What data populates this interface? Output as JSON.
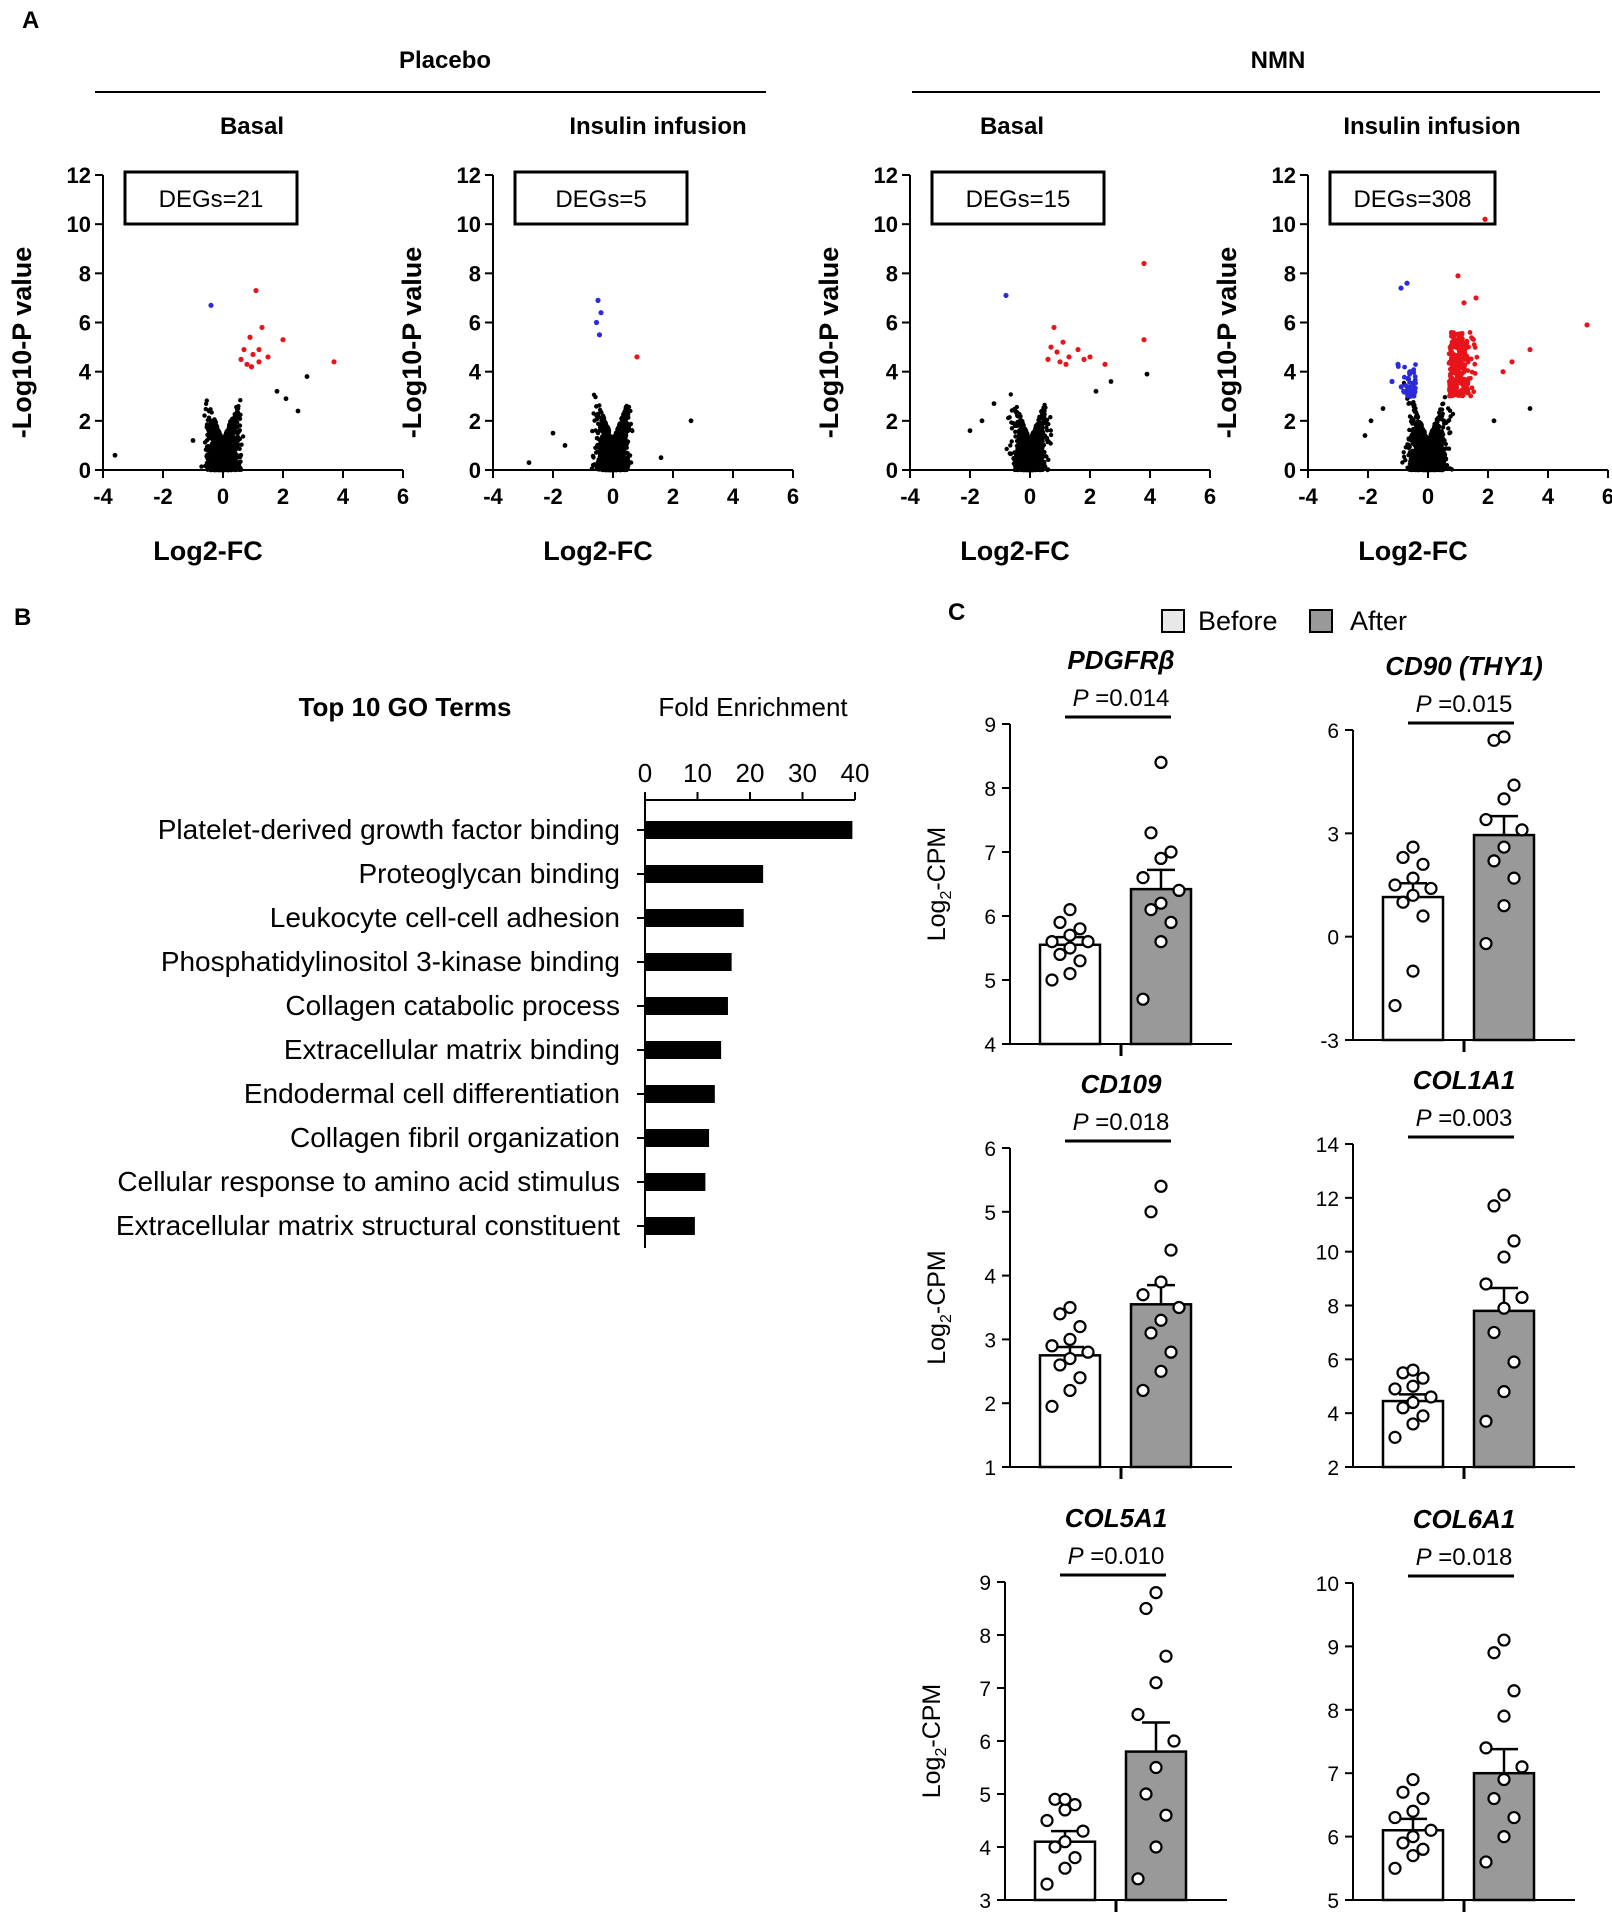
{
  "panels": {
    "A": "A",
    "B": "B",
    "C": "C"
  },
  "panel_a": {
    "groups": [
      {
        "label": "Placebo"
      },
      {
        "label": "NMN"
      }
    ]
  },
  "panel_c": {
    "legend": [
      {
        "label": "Before",
        "color": "#e8e8e8"
      },
      {
        "label": "After",
        "color": "#999999"
      }
    ],
    "ylabel_main": "Log",
    "ylabel_sub": "2",
    "ylabel_rest": "-CPM"
  },
  "colors": {
    "up": "#e8141b",
    "down": "#2b2bd9",
    "ns": "#000000",
    "bar_after": "#999999",
    "bar_before": "#ffffff",
    "go_bar": "#000000"
  },
  "chart_data": [
    {
      "type": "scatter",
      "id": "volcano-placebo-basal",
      "title": "Basal",
      "xlabel": "Log2-FC",
      "ylabel": "-Log10-P value",
      "xlim": [
        -4,
        6
      ],
      "ylim": [
        0,
        12
      ],
      "xticks": [
        "-4",
        "-2",
        "0",
        "2",
        "4",
        "6"
      ],
      "yticks": [
        "0",
        "2",
        "4",
        "6",
        "8",
        "10",
        "12"
      ],
      "annotation": "DEGs=21",
      "red_points": [
        [
          0.6,
          4.5
        ],
        [
          0.8,
          4.3
        ],
        [
          1.0,
          4.7
        ],
        [
          1.2,
          4.4
        ],
        [
          0.9,
          5.4
        ],
        [
          1.3,
          5.8
        ],
        [
          1.5,
          4.6
        ],
        [
          2.0,
          5.3
        ],
        [
          1.1,
          7.3
        ],
        [
          0.7,
          4.9
        ],
        [
          3.7,
          4.4
        ],
        [
          1.2,
          4.9
        ],
        [
          0.95,
          4.2
        ]
      ],
      "blue_points": [
        [
          -0.4,
          6.7
        ]
      ],
      "black_outliers": [
        [
          -3.6,
          0.6
        ],
        [
          2.5,
          2.4
        ],
        [
          2.1,
          2.9
        ],
        [
          -1.0,
          1.2
        ],
        [
          1.8,
          3.2
        ],
        [
          2.8,
          3.8
        ]
      ]
    },
    {
      "type": "scatter",
      "id": "volcano-placebo-insulin",
      "title": "Insulin infusion",
      "xlabel": "Log2-FC",
      "ylabel": "-Log10-P value",
      "xlim": [
        -4,
        6
      ],
      "ylim": [
        0,
        12
      ],
      "xticks": [
        "-4",
        "-2",
        "0",
        "2",
        "4",
        "6"
      ],
      "yticks": [
        "0",
        "2",
        "4",
        "6",
        "8",
        "10",
        "12"
      ],
      "annotation": "DEGs=5",
      "red_points": [
        [
          0.8,
          4.6
        ]
      ],
      "blue_points": [
        [
          -0.5,
          6.9
        ],
        [
          -0.4,
          6.4
        ],
        [
          -0.55,
          6.0
        ],
        [
          -0.45,
          5.5
        ]
      ],
      "black_outliers": [
        [
          -2.8,
          0.3
        ],
        [
          -2.0,
          1.5
        ],
        [
          2.6,
          2.0
        ],
        [
          -1.6,
          1.0
        ],
        [
          1.6,
          0.5
        ]
      ]
    },
    {
      "type": "scatter",
      "id": "volcano-nmn-basal",
      "title": "Basal",
      "xlabel": "Log2-FC",
      "ylabel": "-Log10-P value",
      "xlim": [
        -4,
        6
      ],
      "ylim": [
        0,
        12
      ],
      "xticks": [
        "-4",
        "-2",
        "0",
        "2",
        "4",
        "6"
      ],
      "yticks": [
        "0",
        "2",
        "4",
        "6",
        "8",
        "10",
        "12"
      ],
      "annotation": "DEGs=15",
      "red_points": [
        [
          0.6,
          4.5
        ],
        [
          0.9,
          4.8
        ],
        [
          1.1,
          5.2
        ],
        [
          1.3,
          4.6
        ],
        [
          1.6,
          4.9
        ],
        [
          2.0,
          4.6
        ],
        [
          0.8,
          5.8
        ],
        [
          1.2,
          4.3
        ],
        [
          1.8,
          4.5
        ],
        [
          2.5,
          4.3
        ],
        [
          3.8,
          5.3
        ],
        [
          3.8,
          8.4
        ],
        [
          1.0,
          4.4
        ],
        [
          0.7,
          5.0
        ]
      ],
      "blue_points": [
        [
          -0.8,
          7.1
        ]
      ],
      "black_outliers": [
        [
          3.9,
          3.9
        ],
        [
          2.7,
          3.6
        ],
        [
          -2.0,
          1.6
        ],
        [
          -1.6,
          2.0
        ],
        [
          2.2,
          3.2
        ],
        [
          -1.2,
          2.7
        ]
      ]
    },
    {
      "type": "scatter",
      "id": "volcano-nmn-insulin",
      "title": "Insulin infusion",
      "xlabel": "Log2-FC",
      "ylabel": "-Log10-P value",
      "xlim": [
        -4,
        6
      ],
      "ylim": [
        0,
        12
      ],
      "xticks": [
        "-4",
        "-2",
        "0",
        "2",
        "4",
        "6"
      ],
      "yticks": [
        "0",
        "2",
        "4",
        "6",
        "8",
        "10",
        "12"
      ],
      "annotation": "DEGs=308",
      "red_points": [
        [
          1.9,
          10.2
        ],
        [
          5.3,
          5.9
        ],
        [
          1.0,
          7.9
        ],
        [
          1.6,
          7.0
        ],
        [
          3.4,
          4.9
        ],
        [
          2.8,
          4.4
        ],
        [
          2.5,
          4.0
        ],
        [
          1.2,
          6.8
        ]
      ],
      "blue_points": [
        [
          -0.9,
          7.4
        ],
        [
          -0.7,
          7.6
        ],
        [
          -1.0,
          4.3
        ],
        [
          -0.6,
          4.0
        ],
        [
          -1.2,
          3.6
        ],
        [
          -0.5,
          3.4
        ]
      ],
      "black_outliers": [
        [
          -1.9,
          2.0
        ],
        [
          -2.1,
          1.4
        ],
        [
          3.4,
          2.5
        ],
        [
          2.2,
          2.0
        ],
        [
          -1.5,
          2.5
        ]
      ]
    },
    {
      "type": "bar",
      "id": "go-fold-enrichment",
      "orientation": "horizontal",
      "title": "Fold Enrichment",
      "subtitle": "Top 10 GO Terms",
      "xlim": [
        0,
        40
      ],
      "xticks": [
        "0",
        "10",
        "20",
        "30",
        "40"
      ],
      "categories": [
        "Platelet-derived growth factor binding",
        "Proteoglycan binding",
        "Leukocyte cell-cell adhesion",
        "Phosphatidylinositol 3-kinase binding",
        "Collagen catabolic process",
        "Extracellular matrix binding",
        "Endodermal cell differentiation",
        "Collagen fibril organization",
        "Cellular response to amino acid stimulus",
        "Extracellular matrix structural constituent"
      ],
      "values": [
        39.5,
        22.5,
        18.8,
        16.5,
        15.8,
        14.5,
        13.3,
        12.2,
        11.5,
        9.5
      ]
    },
    {
      "type": "bar",
      "id": "cpm-pdgfrb",
      "title": "PDGFRβ",
      "pvalue": "0.014",
      "p_label": "P",
      "ylabel": "Log2-CPM",
      "ylim": [
        4,
        9
      ],
      "yticks": [
        "4",
        "5",
        "6",
        "7",
        "8",
        "9"
      ],
      "categories": [
        "Before",
        "After"
      ],
      "means": [
        5.55,
        6.42
      ],
      "sem": [
        0.12,
        0.3
      ],
      "points": [
        [
          5.1,
          5.3,
          5.4,
          5.5,
          5.6,
          5.7,
          5.8,
          5.9,
          6.1,
          5.0,
          5.6
        ],
        [
          4.7,
          5.6,
          5.9,
          6.2,
          6.4,
          6.6,
          6.9,
          7.0,
          7.3,
          8.4,
          6.1
        ]
      ]
    },
    {
      "type": "bar",
      "id": "cpm-cd90",
      "title": "CD90 (THY1)",
      "pvalue": "0.015",
      "p_label": "P",
      "ylabel": "Log2-CPM",
      "ylim": [
        -3,
        6
      ],
      "yticks": [
        "-3",
        "0",
        "3",
        "6"
      ],
      "categories": [
        "Before",
        "After"
      ],
      "means": [
        1.15,
        2.95
      ],
      "sem": [
        0.4,
        0.55
      ],
      "points": [
        [
          -2.0,
          -1.0,
          0.6,
          1.0,
          1.2,
          1.4,
          1.5,
          1.7,
          2.1,
          2.3,
          2.6
        ],
        [
          -0.2,
          0.9,
          1.7,
          2.2,
          2.6,
          3.1,
          3.4,
          4.0,
          4.4,
          5.7,
          5.8
        ]
      ]
    },
    {
      "type": "bar",
      "id": "cpm-cd109",
      "title": "CD109",
      "pvalue": "0.018",
      "p_label": "P",
      "ylabel": "Log2-CPM",
      "ylim": [
        1,
        6
      ],
      "yticks": [
        "1",
        "2",
        "3",
        "4",
        "5",
        "6"
      ],
      "categories": [
        "Before",
        "After"
      ],
      "means": [
        2.75,
        3.55
      ],
      "sem": [
        0.13,
        0.3
      ],
      "points": [
        [
          1.95,
          2.2,
          2.4,
          2.6,
          2.7,
          2.8,
          2.9,
          3.0,
          3.2,
          3.4,
          3.5
        ],
        [
          2.2,
          2.5,
          2.8,
          3.1,
          3.3,
          3.5,
          3.7,
          3.9,
          4.4,
          5.0,
          5.4
        ]
      ]
    },
    {
      "type": "bar",
      "id": "cpm-col1a1",
      "title": "COL1A1",
      "pvalue": "0.003",
      "p_label": "P",
      "ylabel": "Log2-CPM",
      "ylim": [
        2,
        14
      ],
      "yticks": [
        "2",
        "4",
        "6",
        "8",
        "10",
        "12",
        "14"
      ],
      "categories": [
        "Before",
        "After"
      ],
      "means": [
        4.45,
        7.8
      ],
      "sem": [
        0.25,
        0.85
      ],
      "points": [
        [
          3.1,
          3.6,
          3.9,
          4.2,
          4.4,
          4.6,
          4.9,
          5.0,
          5.3,
          5.5,
          5.6
        ],
        [
          3.7,
          4.8,
          5.9,
          7.0,
          7.9,
          8.3,
          8.8,
          9.8,
          10.4,
          11.7,
          12.1
        ]
      ]
    },
    {
      "type": "bar",
      "id": "cpm-col5a1",
      "title": "COL5A1",
      "pvalue": "0.010",
      "p_label": "P",
      "ylabel": "Log2-CPM",
      "ylim": [
        3,
        9
      ],
      "yticks": [
        "3",
        "4",
        "5",
        "6",
        "7",
        "8",
        "9"
      ],
      "categories": [
        "Before",
        "After"
      ],
      "means": [
        4.1,
        5.8
      ],
      "sem": [
        0.2,
        0.55
      ],
      "points": [
        [
          3.3,
          3.6,
          3.8,
          4.0,
          4.1,
          4.3,
          4.5,
          4.7,
          4.8,
          4.9,
          4.9
        ],
        [
          3.4,
          4.0,
          4.6,
          5.0,
          5.5,
          6.0,
          6.5,
          7.1,
          7.6,
          8.5,
          8.8
        ]
      ]
    },
    {
      "type": "bar",
      "id": "cpm-col6a1",
      "title": "COL6A1",
      "pvalue": "0.018",
      "p_label": "P",
      "ylabel": "Log2-CPM",
      "ylim": [
        5,
        10
      ],
      "yticks": [
        "5",
        "6",
        "7",
        "8",
        "9",
        "10"
      ],
      "categories": [
        "Before",
        "After"
      ],
      "means": [
        6.1,
        7.0
      ],
      "sem": [
        0.18,
        0.38
      ],
      "points": [
        [
          5.5,
          5.7,
          5.9,
          6.0,
          6.1,
          6.3,
          6.4,
          6.6,
          6.7,
          6.9,
          5.8
        ],
        [
          5.6,
          6.0,
          6.3,
          6.6,
          6.9,
          7.1,
          7.4,
          7.9,
          8.3,
          8.9,
          9.1
        ]
      ]
    }
  ]
}
